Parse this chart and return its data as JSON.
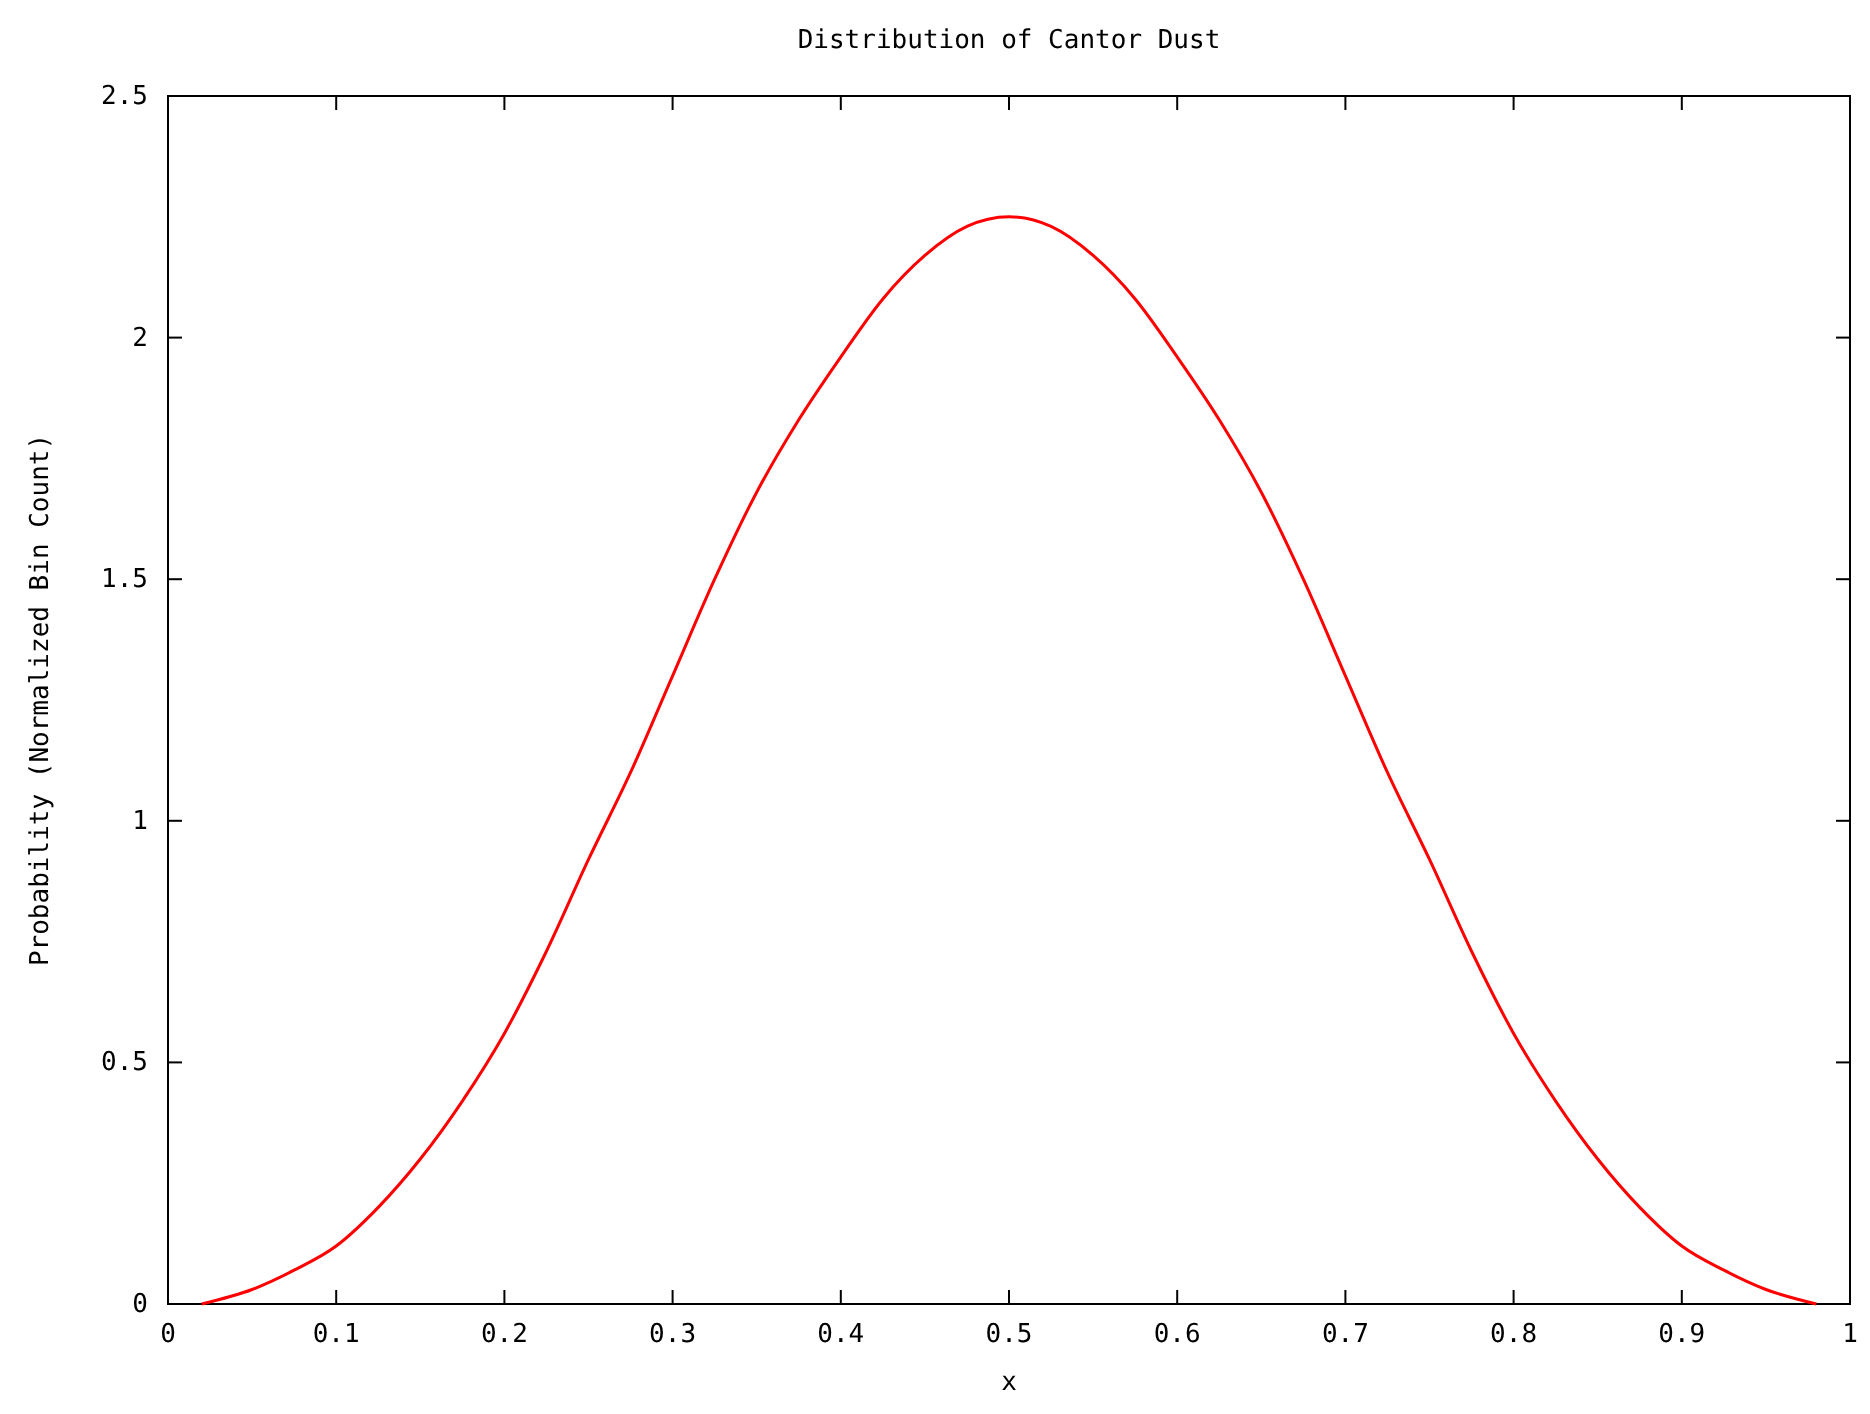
{
  "chart_data": {
    "type": "line",
    "title": "Distribution of Cantor Dust",
    "xlabel": "x",
    "ylabel": "Probability (Normalized Bin Count)",
    "xlim": [
      0,
      1
    ],
    "ylim": [
      0,
      2.5
    ],
    "xticks": [
      0,
      0.1,
      0.2,
      0.3,
      0.4,
      0.5,
      0.6,
      0.7,
      0.8,
      0.9,
      1
    ],
    "yticks": [
      0,
      0.5,
      1,
      1.5,
      2,
      2.5
    ],
    "marker": "none",
    "line_style": "solid",
    "series": [
      {
        "color": "#ff0000",
        "x": [
          0.02,
          0.05,
          0.075,
          0.1,
          0.125,
          0.15,
          0.175,
          0.2,
          0.225,
          0.25,
          0.275,
          0.3,
          0.325,
          0.35,
          0.375,
          0.4,
          0.425,
          0.45,
          0.475,
          0.5,
          0.525,
          0.55,
          0.575,
          0.6,
          0.625,
          0.65,
          0.675,
          0.7,
          0.725,
          0.75,
          0.775,
          0.8,
          0.825,
          0.85,
          0.875,
          0.9,
          0.925,
          0.95,
          0.98
        ],
        "values": [
          0,
          0.03,
          0.07,
          0.12,
          0.2,
          0.3,
          0.42,
          0.56,
          0.73,
          0.92,
          1.1,
          1.3,
          1.5,
          1.68,
          1.83,
          1.96,
          2.08,
          2.17,
          2.23,
          2.25,
          2.23,
          2.17,
          2.08,
          1.96,
          1.83,
          1.68,
          1.5,
          1.3,
          1.1,
          0.92,
          0.73,
          0.56,
          0.42,
          0.3,
          0.2,
          0.12,
          0.07,
          0.03,
          0
        ]
      }
    ]
  }
}
